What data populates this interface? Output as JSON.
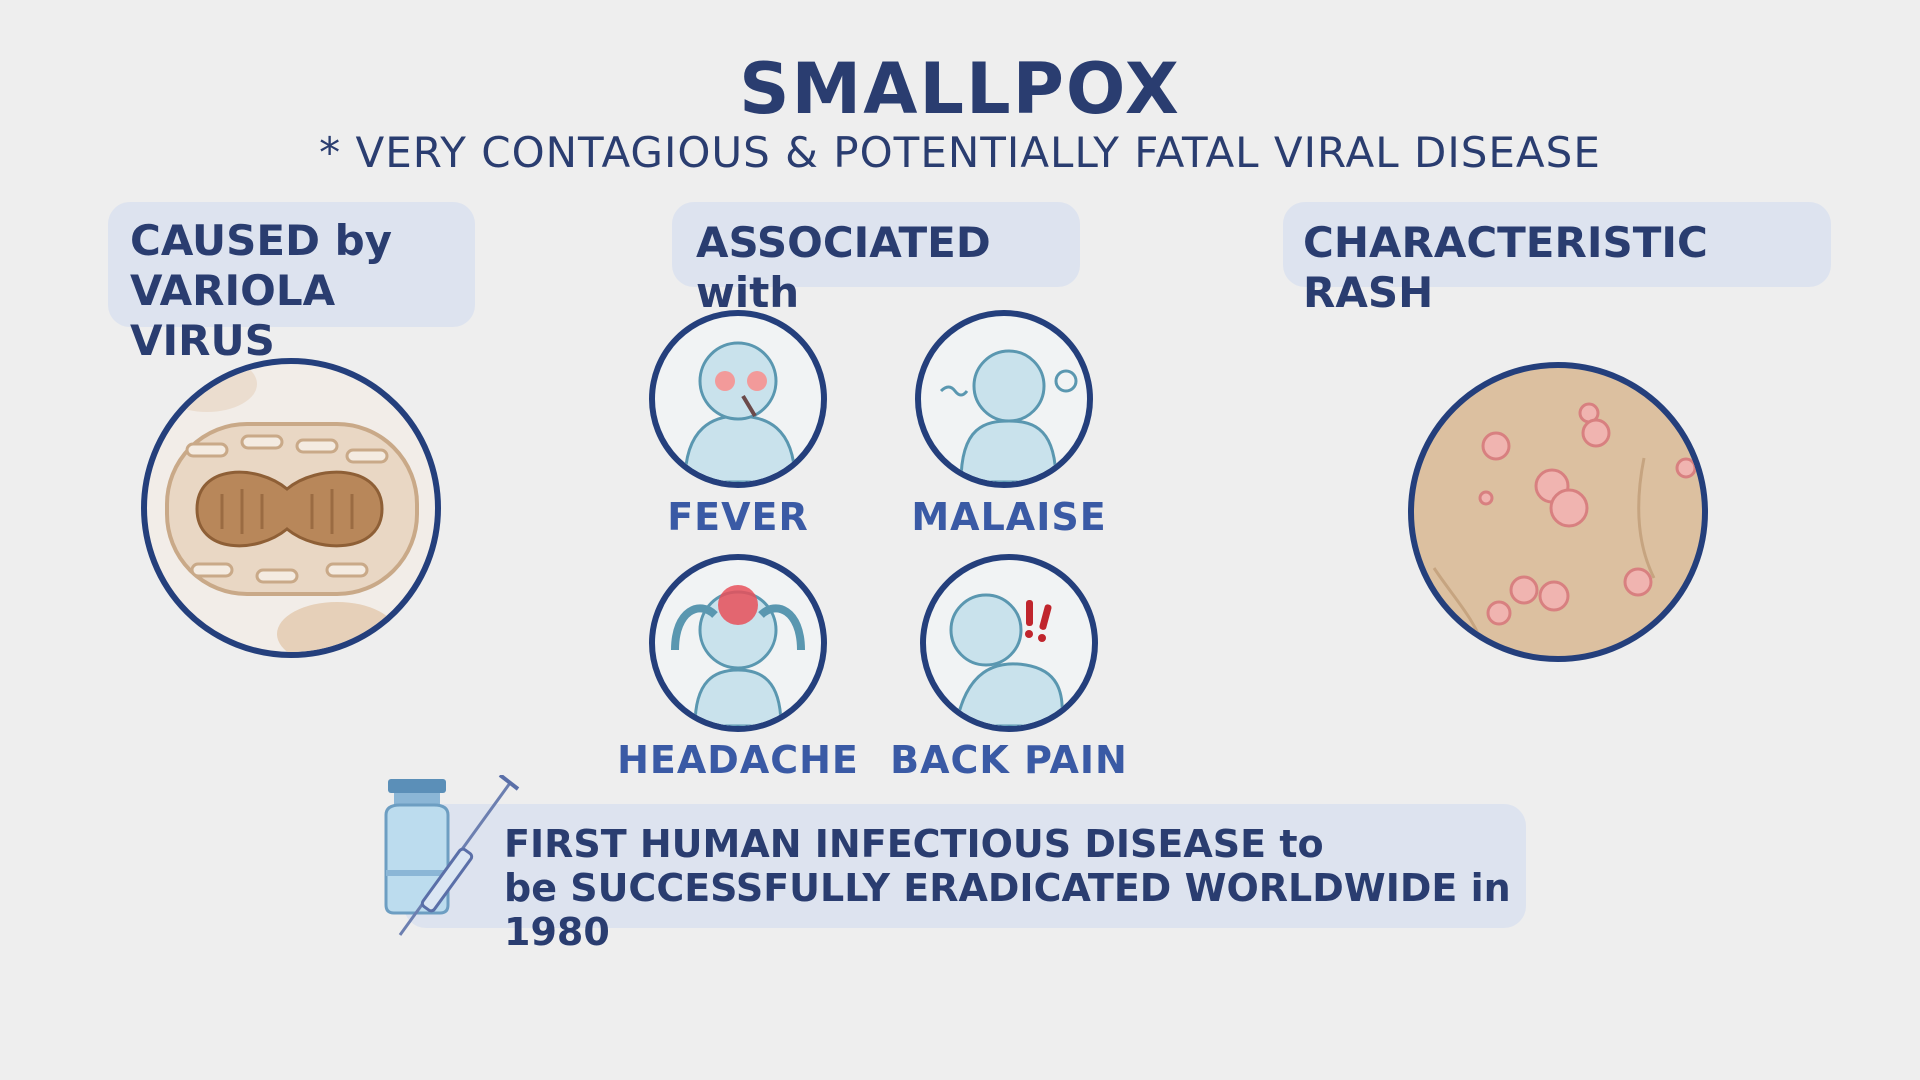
{
  "header": {
    "title": "SMALLPOX",
    "subtitle": "* VERY CONTAGIOUS & POTENTIALLY FATAL VIRAL DISEASE"
  },
  "cause": {
    "line1": "CAUSED by",
    "line2": "VARIOLA VIRUS",
    "icon": "variola-virus-illustration"
  },
  "associated": {
    "heading": "ASSOCIATED with",
    "symptoms": [
      {
        "label": "FEVER",
        "icon": "fever-figure-icon"
      },
      {
        "label": "MALAISE",
        "icon": "malaise-figure-icon"
      },
      {
        "label": "HEADACHE",
        "icon": "headache-figure-icon"
      },
      {
        "label": "BACK PAIN",
        "icon": "back-pain-figure-icon"
      }
    ]
  },
  "rash": {
    "heading": "CHARACTERISTIC RASH",
    "icon": "skin-rash-illustration"
  },
  "footer": {
    "line1": "FIRST HUMAN INFECTIOUS DISEASE to",
    "line2": "be SUCCESSFULLY ERADICATED WORLDWIDE in 1980",
    "icon": "vaccine-vial-syringe-icon"
  },
  "colors": {
    "background": "#eeeeee",
    "text": "#2a3d70",
    "label": "#3a5aa5",
    "box": "#dde3ef",
    "circle_stroke": "#243f7c",
    "figure": "#c9e2ec",
    "virus": "#b8875a",
    "skin": "#dcc0a0",
    "lesion": "#e49a9a"
  }
}
